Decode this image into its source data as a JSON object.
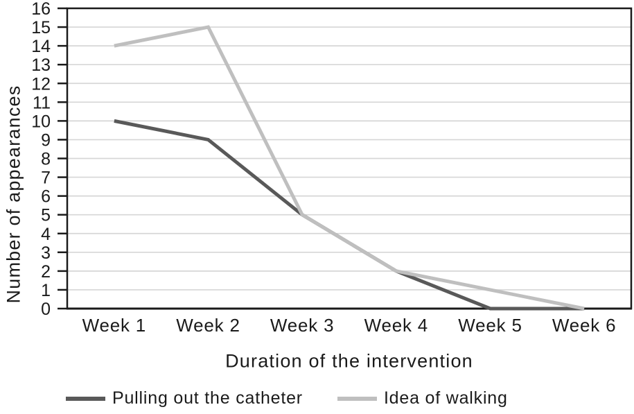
{
  "chart_data": {
    "type": "line",
    "title": "",
    "categories": [
      "Week 1",
      "Week 2",
      "Week 3",
      "Week 4",
      "Week 5",
      "Week 6"
    ],
    "series": [
      {
        "name": "Pulling out the catheter",
        "color": "#595959",
        "values": [
          10,
          9,
          5,
          2,
          0,
          0
        ]
      },
      {
        "name": "Idea of walking",
        "color": "#bfbfbf",
        "values": [
          14,
          15,
          5,
          2,
          1,
          0
        ]
      }
    ],
    "xlabel": "Duration of the intervention",
    "ylabel": "Number of appearances",
    "ylim": [
      0,
      16
    ],
    "ytick_step": 1,
    "grid": true,
    "legend_position": "bottom",
    "axis_color": "#1a1a1a",
    "gridline_color": "#d6d6d6",
    "text_color": "#1a1a1a"
  }
}
